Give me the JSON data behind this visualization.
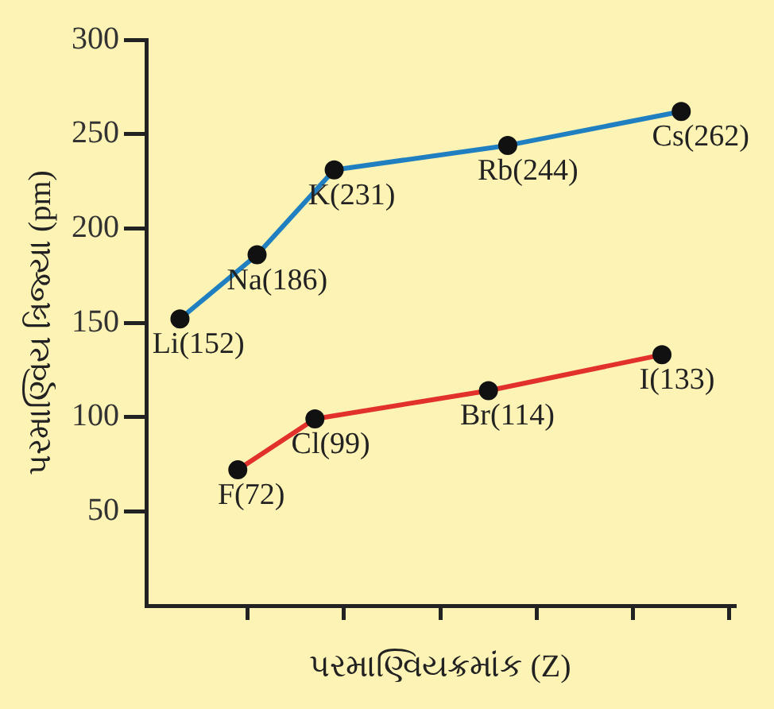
{
  "chart_data": {
    "type": "line",
    "xlabel": "પરમાણ્વિયક્રમાંક (Z)",
    "ylabel": "પરમાણ્વિય ત્રિજ્યા (pm)",
    "categories": [
      null,
      null,
      null,
      null,
      null,
      null,
      null,
      null,
      null,
      null,
      null,
      null,
      null,
      null,
      null,
      null,
      null,
      null,
      null,
      null,
      null,
      null,
      null,
      null,
      null,
      null,
      null,
      null,
      null,
      null,
      null,
      null,
      null,
      null,
      null,
      null,
      null,
      null,
      null,
      null,
      null,
      null,
      null,
      null,
      null,
      null,
      null,
      null,
      null,
      null,
      null,
      null,
      null,
      null,
      null,
      null,
      null,
      null,
      null,
      null,
      null
    ],
    "ylim": [
      0,
      300
    ],
    "yticks": [
      50,
      100,
      150,
      200,
      250,
      300
    ],
    "tick_labels": "y",
    "grid": false,
    "legend": false,
    "marker": "circle",
    "line_style": "solid",
    "series": [
      {
        "color": "#1f7fc0",
        "values": [
          null,
          null,
          null,
          152,
          null,
          null,
          null,
          null,
          null,
          null,
          null,
          186,
          null,
          null,
          null,
          null,
          null,
          null,
          null,
          231,
          null,
          null,
          null,
          null,
          null,
          null,
          null,
          null,
          null,
          null,
          null,
          null,
          null,
          null,
          null,
          null,
          null,
          244,
          null,
          null,
          null,
          null,
          null,
          null,
          null,
          null,
          null,
          null,
          null,
          null,
          null,
          null,
          null,
          null,
          null,
          262,
          null,
          null,
          null,
          null,
          null
        ],
        "value_labels": [
          null,
          null,
          null,
          "Li(152)",
          null,
          null,
          null,
          null,
          null,
          null,
          null,
          "Na(186)",
          null,
          null,
          null,
          null,
          null,
          null,
          null,
          "K(231)",
          null,
          null,
          null,
          null,
          null,
          null,
          null,
          null,
          null,
          null,
          null,
          null,
          null,
          null,
          null,
          null,
          null,
          "Rb(244)",
          null,
          null,
          null,
          null,
          null,
          null,
          null,
          null,
          null,
          null,
          null,
          null,
          null,
          null,
          null,
          null,
          null,
          "Cs(262)",
          null,
          null,
          null,
          null,
          null
        ]
      },
      {
        "color": "#e2302a",
        "values": [
          null,
          null,
          null,
          null,
          null,
          null,
          null,
          null,
          null,
          72,
          null,
          null,
          null,
          null,
          null,
          null,
          null,
          99,
          null,
          null,
          null,
          null,
          null,
          null,
          null,
          null,
          null,
          null,
          null,
          null,
          null,
          null,
          null,
          null,
          null,
          114,
          null,
          null,
          null,
          null,
          null,
          null,
          null,
          null,
          null,
          null,
          null,
          null,
          null,
          null,
          null,
          null,
          null,
          133,
          null,
          null,
          null,
          null,
          null,
          null,
          null
        ],
        "value_labels": [
          null,
          null,
          null,
          null,
          null,
          null,
          null,
          null,
          null,
          "F(72)",
          null,
          null,
          null,
          null,
          null,
          null,
          null,
          "Cl(99)",
          null,
          null,
          null,
          null,
          null,
          null,
          null,
          null,
          null,
          null,
          null,
          null,
          null,
          null,
          null,
          null,
          null,
          "Br(114)",
          null,
          null,
          null,
          null,
          null,
          null,
          null,
          null,
          null,
          null,
          null,
          null,
          null,
          null,
          null,
          null,
          null,
          "I(133)",
          null,
          null,
          null,
          null,
          null,
          null,
          null
        ]
      }
    ]
  }
}
